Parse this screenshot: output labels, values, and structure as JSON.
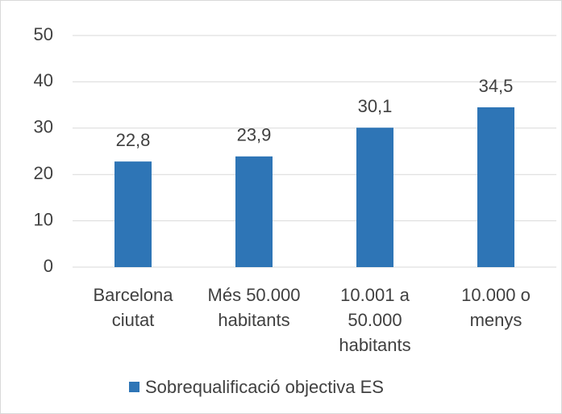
{
  "chart_data": {
    "type": "bar",
    "categories": [
      "Barcelona ciutat",
      "Més 50.000 habitants",
      "10.001 a 50.000 habitants",
      "10.000 o menys"
    ],
    "series": [
      {
        "name": "Sobrequalificació objectiva ES",
        "color": "#2e75b6",
        "values": [
          22.8,
          23.9,
          30.1,
          34.5
        ],
        "value_labels": [
          "22,8",
          "23,9",
          "30,1",
          "34,5"
        ]
      }
    ],
    "ylim": [
      0,
      50
    ],
    "yticks": [
      0,
      10,
      20,
      30,
      40,
      50
    ],
    "grid": true,
    "legend": "bottom"
  }
}
